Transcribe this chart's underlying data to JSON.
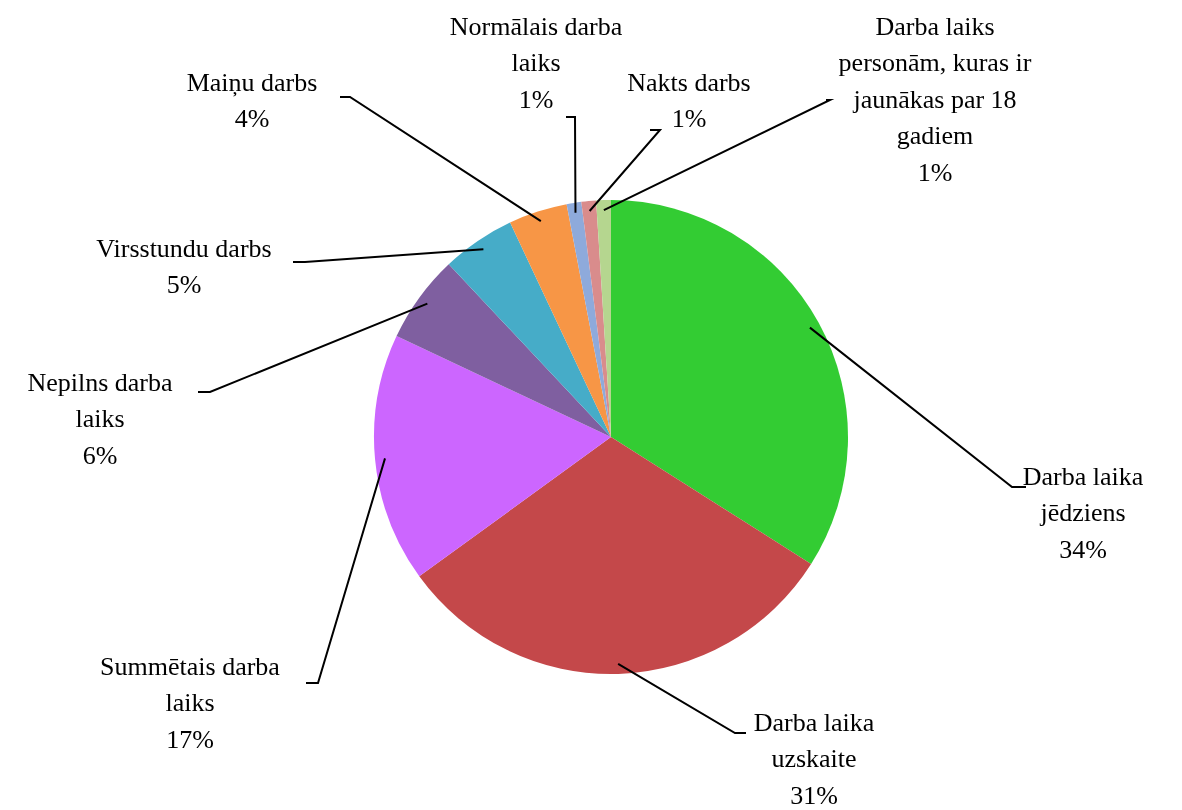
{
  "chart_data": {
    "type": "pie",
    "categories": [
      "Darba laika jēdziens",
      "Darba laika uzskaite",
      "Summētais darba laiks",
      "Nepilns darba laiks",
      "Virsstundu darbs",
      "Maiņu darbs",
      "Normālais darba laiks",
      "Nakts darbs",
      "Darba laiks personām, kuras ir jaunākas par 18 gadiem"
    ],
    "values": [
      34,
      31,
      17,
      6,
      5,
      4,
      1,
      1,
      1
    ],
    "value_labels": [
      "34%",
      "31%",
      "17%",
      "6%",
      "5%",
      "4%",
      "1%",
      "1%",
      "1%"
    ],
    "colors": [
      "#33cc33",
      "#c4484a",
      "#cc66ff",
      "#7f5fa0",
      "#46acc8",
      "#f79646",
      "#8eaadb",
      "#d98c8c",
      "#b5d68f"
    ]
  }
}
